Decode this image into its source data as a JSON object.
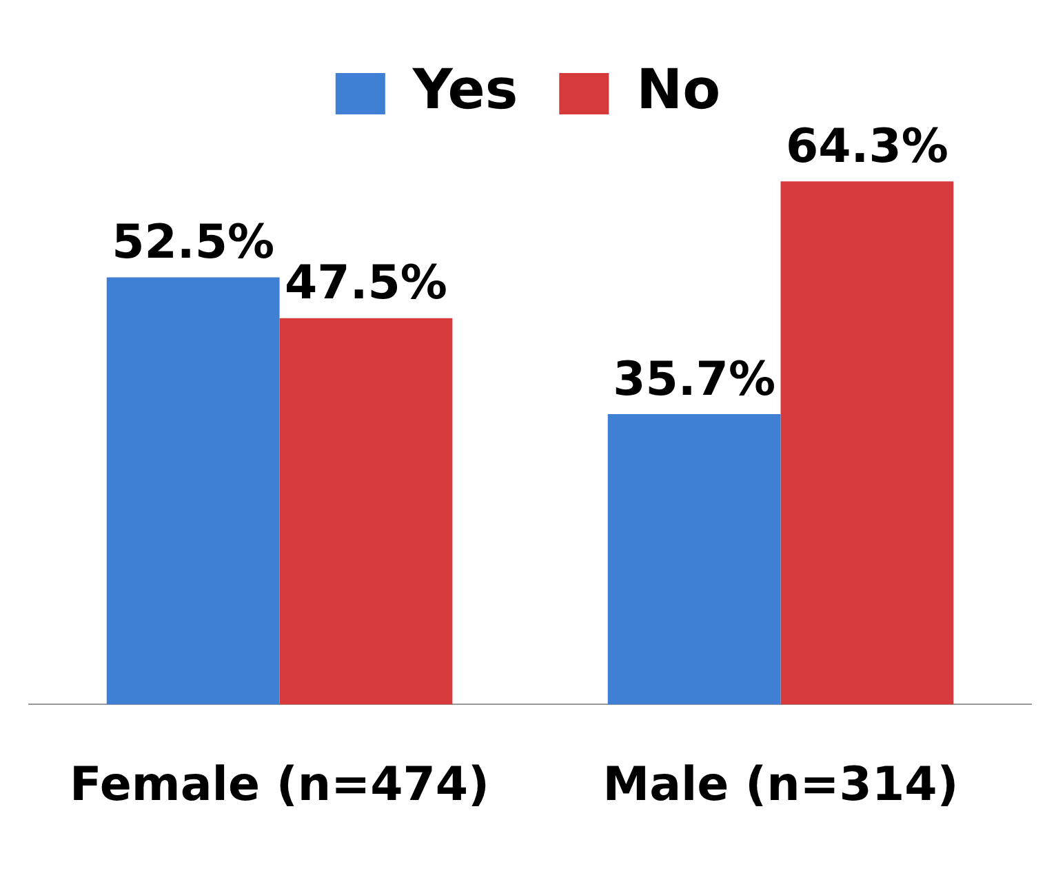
{
  "chart_data": {
    "type": "bar",
    "categories": [
      "Female (n=474)",
      "Male (n=314)"
    ],
    "series": [
      {
        "name": "Yes",
        "color": "#3f7fd4",
        "values": [
          52.5,
          35.7
        ],
        "value_labels": [
          "52.5%",
          "35.7%"
        ]
      },
      {
        "name": "No",
        "color": "#d63a3a",
        "values": [
          47.5,
          64.3
        ],
        "value_labels": [
          "47.5%",
          "64.3%"
        ]
      }
    ],
    "legend": "top",
    "grid": false
  }
}
